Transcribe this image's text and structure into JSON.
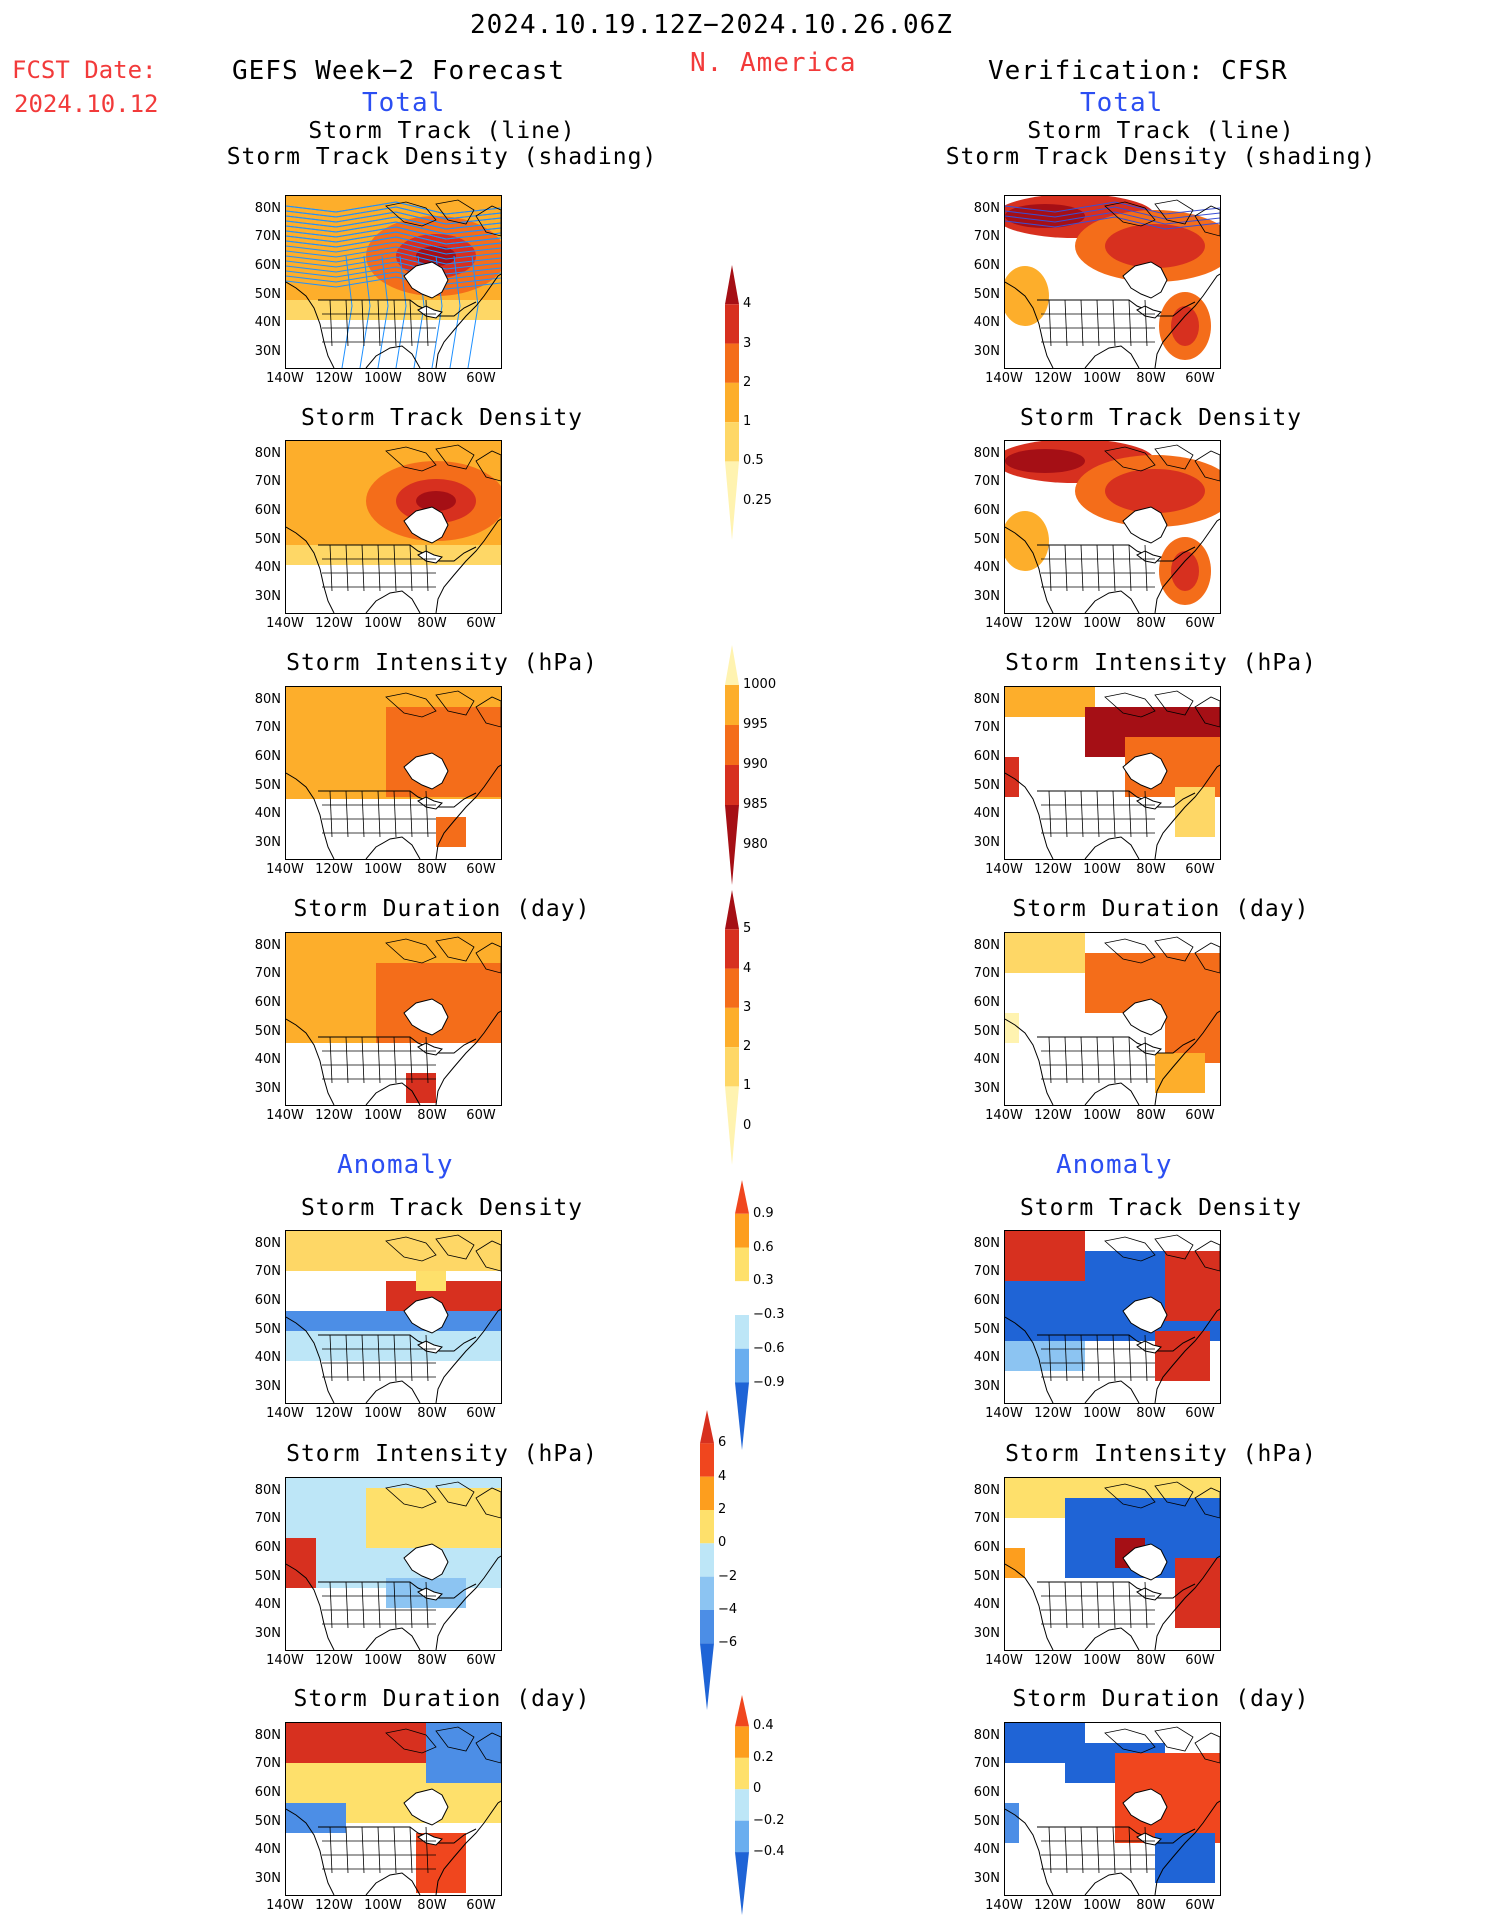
{
  "header": {
    "period": "2024.10.19.12Z−2024.10.26.06Z",
    "fcst_label": "FCST Date:",
    "fcst_date": "2024.10.12",
    "left_title": "GEFS Week−2 Forecast",
    "region": "N. America",
    "right_title": "Verification: CFSR",
    "total_label": "Total",
    "anomaly_label": "Anomaly"
  },
  "panel_titles": {
    "track_line": "Storm Track (line)",
    "track_density_shading": "Storm Track Density (shading)",
    "density": "Storm Track Density",
    "intensity": "Storm Intensity (hPa)",
    "duration": "Storm Duration (day)"
  },
  "axes": {
    "lat_labels": [
      "80N",
      "70N",
      "60N",
      "50N",
      "40N",
      "30N"
    ],
    "lon_labels": [
      "140W",
      "120W",
      "100W",
      "80W",
      "60W"
    ]
  },
  "colorbars": {
    "density": {
      "labels": [
        "4",
        "3",
        "2",
        "1",
        "0.5",
        "0.25"
      ],
      "colors": [
        "#a50f15",
        "#d7301f",
        "#f46d1a",
        "#fdae2b",
        "#fed766",
        "#fff3b0"
      ]
    },
    "intensity": {
      "labels": [
        "1000",
        "995",
        "990",
        "985",
        "980"
      ],
      "colors": [
        "#fff3b0",
        "#fdae2b",
        "#f46d1a",
        "#d7301f",
        "#a50f15"
      ]
    },
    "duration": {
      "labels": [
        "5",
        "4",
        "3",
        "2",
        "1",
        "0"
      ],
      "colors": [
        "#a50f15",
        "#d7301f",
        "#f46d1a",
        "#fdae2b",
        "#fed766",
        "#fff3b0"
      ]
    },
    "anom_density": {
      "labels": [
        "0.9",
        "0.6",
        "0.3",
        "−0.3",
        "−0.6",
        "−0.9"
      ],
      "colors": [
        "#f0461e",
        "#fd9e1e",
        "#fee06b",
        "#ffffff",
        "#bde6f7",
        "#6aaeef",
        "#1f64d6"
      ]
    },
    "anom_intensity": {
      "labels": [
        "6",
        "4",
        "2",
        "0",
        "−2",
        "−4",
        "−6"
      ],
      "colors": [
        "#d7301f",
        "#f0461e",
        "#fd9e1e",
        "#fee06b",
        "#bde6f7",
        "#8cc4f2",
        "#4c8ee6",
        "#1f64d6"
      ]
    },
    "anom_duration": {
      "labels": [
        "0.4",
        "0.2",
        "0",
        "−0.2",
        "−0.4"
      ],
      "colors": [
        "#f0461e",
        "#fd9e1e",
        "#fee06b",
        "#bde6f7",
        "#6aaeef",
        "#1f64d6"
      ]
    }
  }
}
